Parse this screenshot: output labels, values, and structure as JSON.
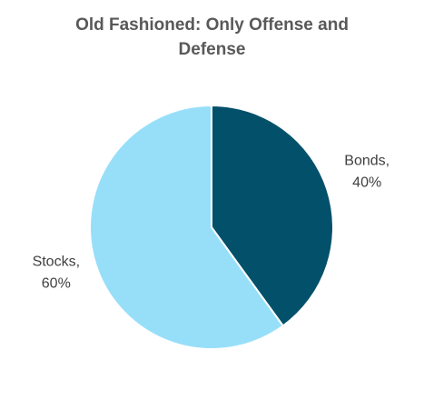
{
  "chart_data": {
    "type": "pie",
    "title": "Old Fashioned: Only Offense and Defense",
    "categories": [
      "Bonds",
      "Stocks"
    ],
    "values": [
      40,
      60
    ],
    "value_labels": [
      "40%",
      "60%"
    ],
    "label_separator": ",",
    "colors": [
      "#03506b",
      "#97dff9"
    ]
  }
}
